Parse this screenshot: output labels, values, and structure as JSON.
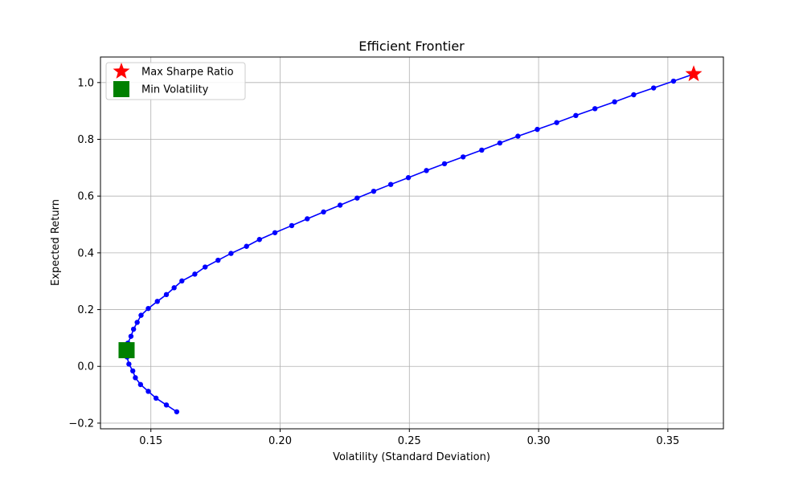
{
  "chart_data": {
    "type": "line",
    "title": "Efficient Frontier",
    "xlabel": "Volatility (Standard Deviation)",
    "ylabel": "Expected Return",
    "xlim": [
      0.1305,
      0.3715
    ],
    "ylim": [
      -0.22,
      1.09
    ],
    "xticks": [
      0.15,
      0.2,
      0.25,
      0.3,
      0.35
    ],
    "xtick_labels": [
      "0.15",
      "0.20",
      "0.25",
      "0.30",
      "0.35"
    ],
    "yticks": [
      -0.2,
      0.0,
      0.2,
      0.4,
      0.6,
      0.8,
      1.0
    ],
    "ytick_labels": [
      "−0.2",
      "0.0",
      "0.2",
      "0.4",
      "0.6",
      "0.8",
      "1.0"
    ],
    "grid": true,
    "legend_position": "top-left",
    "series": [
      {
        "kind": "frontier",
        "color": "#0000ff",
        "marker": "circle",
        "points": [
          [
            0.16,
            -0.16
          ],
          [
            0.156,
            -0.136
          ],
          [
            0.152,
            -0.112
          ],
          [
            0.149,
            -0.088
          ],
          [
            0.146,
            -0.064
          ],
          [
            0.144,
            -0.04
          ],
          [
            0.143,
            -0.016
          ],
          [
            0.1415,
            0.008
          ],
          [
            0.1408,
            0.033
          ],
          [
            0.1406,
            0.057
          ],
          [
            0.1411,
            0.082
          ],
          [
            0.1423,
            0.106
          ],
          [
            0.1433,
            0.131
          ],
          [
            0.1447,
            0.155
          ],
          [
            0.1462,
            0.18
          ],
          [
            0.149,
            0.204
          ],
          [
            0.1525,
            0.229
          ],
          [
            0.156,
            0.253
          ],
          [
            0.159,
            0.277
          ],
          [
            0.162,
            0.301
          ],
          [
            0.167,
            0.325
          ],
          [
            0.171,
            0.35
          ],
          [
            0.176,
            0.374
          ],
          [
            0.181,
            0.398
          ],
          [
            0.187,
            0.423
          ],
          [
            0.192,
            0.447
          ],
          [
            0.198,
            0.471
          ],
          [
            0.2045,
            0.496
          ],
          [
            0.2105,
            0.52
          ],
          [
            0.2168,
            0.544
          ],
          [
            0.2232,
            0.568
          ],
          [
            0.2298,
            0.593
          ],
          [
            0.2362,
            0.617
          ],
          [
            0.2428,
            0.641
          ],
          [
            0.2496,
            0.665
          ],
          [
            0.2566,
            0.69
          ],
          [
            0.2636,
            0.714
          ],
          [
            0.2708,
            0.738
          ],
          [
            0.278,
            0.762
          ],
          [
            0.285,
            0.787
          ],
          [
            0.292,
            0.811
          ],
          [
            0.2995,
            0.835
          ],
          [
            0.307,
            0.859
          ],
          [
            0.3144,
            0.884
          ],
          [
            0.3218,
            0.908
          ],
          [
            0.3294,
            0.932
          ],
          [
            0.3368,
            0.957
          ],
          [
            0.3445,
            0.981
          ],
          [
            0.3522,
            1.005
          ],
          [
            0.36,
            1.03
          ]
        ]
      },
      {
        "name": "Max Sharpe Ratio",
        "kind": "marker",
        "color": "#ff0000",
        "marker": "star",
        "points": [
          [
            0.36,
            1.03
          ]
        ]
      },
      {
        "name": "Min Volatility",
        "kind": "marker",
        "color": "#008000",
        "marker": "square",
        "points": [
          [
            0.1406,
            0.057
          ]
        ]
      }
    ]
  }
}
